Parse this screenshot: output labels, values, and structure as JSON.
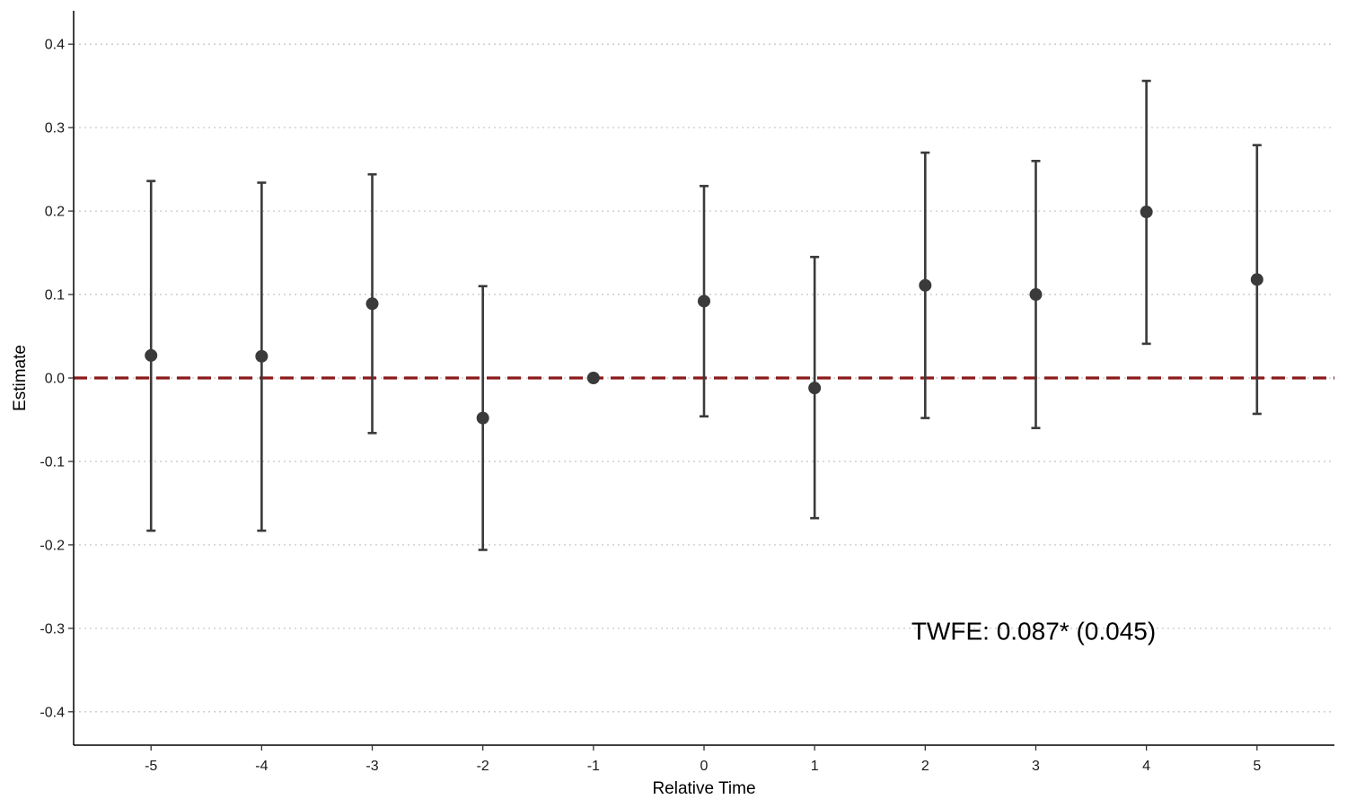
{
  "chart_data": {
    "type": "scatter",
    "subtype": "coefficient plot with error bars",
    "title": "",
    "xlabel": "Relative Time",
    "ylabel": "Estimate",
    "xlim": [
      -5.7,
      5.7
    ],
    "ylim": [
      -0.44,
      0.44
    ],
    "x_ticks": [
      -5,
      -4,
      -3,
      -2,
      -1,
      0,
      1,
      2,
      3,
      4,
      5
    ],
    "x_tick_labels": [
      "-5",
      "-4",
      "-3",
      "-2",
      "-1",
      "0",
      "1",
      "2",
      "3",
      "4",
      "5"
    ],
    "y_ticks": [
      -0.4,
      -0.3,
      -0.2,
      -0.1,
      0.0,
      0.1,
      0.2,
      0.3,
      0.4
    ],
    "y_tick_labels": [
      "-0.4",
      "-0.3",
      "-0.2",
      "-0.1",
      "0.0",
      "0.1",
      "0.2",
      "0.3",
      "0.4"
    ],
    "grid": "horizontal dotted major lines",
    "points": [
      {
        "x": -5,
        "estimate": 0.027,
        "lower": -0.183,
        "upper": 0.236
      },
      {
        "x": -4,
        "estimate": 0.026,
        "lower": -0.183,
        "upper": 0.234
      },
      {
        "x": -3,
        "estimate": 0.089,
        "lower": -0.066,
        "upper": 0.244
      },
      {
        "x": -2,
        "estimate": -0.048,
        "lower": -0.206,
        "upper": 0.11
      },
      {
        "x": -1,
        "estimate": 0.0,
        "lower": 0.0,
        "upper": 0.0
      },
      {
        "x": 0,
        "estimate": 0.092,
        "lower": -0.046,
        "upper": 0.23
      },
      {
        "x": 1,
        "estimate": -0.012,
        "lower": -0.168,
        "upper": 0.145
      },
      {
        "x": 2,
        "estimate": 0.111,
        "lower": -0.048,
        "upper": 0.27
      },
      {
        "x": 3,
        "estimate": 0.1,
        "lower": -0.06,
        "upper": 0.26
      },
      {
        "x": 4,
        "estimate": 0.199,
        "lower": 0.041,
        "upper": 0.356
      },
      {
        "x": 5,
        "estimate": 0.118,
        "lower": -0.043,
        "upper": 0.279
      }
    ],
    "reference_line": {
      "y": 0,
      "style": "dashed",
      "color": "#8b1a1a"
    },
    "annotation": {
      "text": "TWFE: 0.087* (0.045)",
      "x": 2.98,
      "y": -0.303
    },
    "colors": {
      "points": "#3a3a3a",
      "error_bars": "#3a3a3a",
      "grid": "#c8c8c8",
      "axis": "#000000"
    }
  }
}
